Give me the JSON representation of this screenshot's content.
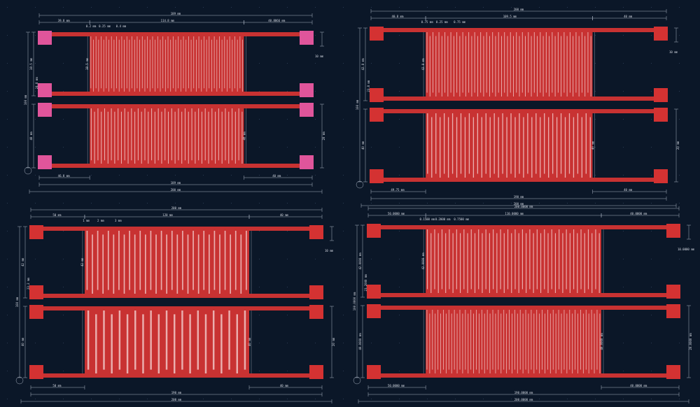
{
  "colors": {
    "background": "#0b1728",
    "copper": "#d93a3a",
    "copper_fill": "#c83232",
    "pad_magenta": "#e0559b",
    "pad_red": "#d43232",
    "dimension": "#aab3c2",
    "dim_text": "#d8dde6",
    "grid_dot": "#2a3a52"
  },
  "panels": [
    {
      "name": "top-left",
      "pad_style": "magenta",
      "fingers_top": 60,
      "fingers_bottom": 46,
      "labels": {
        "overall_w": "189 mm",
        "inner_w": "114.8 mm",
        "left_w": "39.8 mm",
        "right_w": "40.8866 mm",
        "left_bottom": "46.8 mm",
        "right_bottom": "40 mm",
        "bottom_total": "189 mm",
        "bottom_overall": "200 mm",
        "gap1": "0.2 mm",
        "gap2": "0.25 mm",
        "gap3": "0.4 mm",
        "height_a": "38.5 mm",
        "height_b": "24.8 mm",
        "height_c": "40 mm",
        "height_total": "100 mm",
        "side_a": "10 mm",
        "side_b": "20 mm"
      }
    },
    {
      "name": "top-right",
      "pad_style": "red",
      "fingers_top": 56,
      "fingers_bottom": 40,
      "labels": {
        "overall_w": "200 mm",
        "inner_w": "109.5 mm",
        "left_w": "40.8 mm",
        "right_w": "40 mm",
        "left_bottom": "49.75 mm",
        "right_bottom": "40 mm",
        "bottom_total": "190 mm",
        "bottom_overall": "200 mm",
        "gap1": "0.75 mm",
        "gap2": "0.25 mm",
        "gap3": "0.75 mm",
        "height_a": "42.8 mm",
        "height_b": "23.8 mm",
        "height_c": "40 mm",
        "height_total": "100 mm",
        "side_a": "10 mm",
        "side_b": "20 mm"
      }
    },
    {
      "name": "bottom-left",
      "pad_style": "red",
      "fingers_top": 31,
      "fingers_bottom": 21,
      "labels": {
        "overall_w": "200 mm",
        "inner_w": "120 mm",
        "left_w": "50 mm",
        "right_w": "40 mm",
        "left_bottom": "50 mm",
        "right_bottom": "40 mm",
        "bottom_total": "190 mm",
        "bottom_overall": "200 mm",
        "gap1": "1 mm",
        "gap2": "2 mm",
        "gap3": "3 mm",
        "height_a": "42 mm",
        "height_b": "23.2 mm",
        "height_c": "40 mm",
        "height_total": "100 mm",
        "side_a": "10 mm",
        "side_b": "20 mm"
      }
    },
    {
      "name": "bottom-right",
      "pad_style": "red",
      "fingers_top": 48,
      "fingers_bottom": 64,
      "labels": {
        "overall_w": "200.0000 mm",
        "inner_w": "110.0000 mm",
        "left_w": "50.0000 mm",
        "right_w": "40.0000 mm",
        "left_bottom": "50.0000 mm",
        "right_bottom": "40.0000 mm",
        "bottom_total": "190.0000 mm",
        "bottom_overall": "200.0000 mm",
        "gap1": "0.1500 mm",
        "gap2": "0.2000 mm",
        "gap3": "0.7500 mm",
        "height_a": "42.0000 mm",
        "height_b": "23.2000 mm",
        "height_c": "40.0000 mm",
        "height_total": "100.0000 mm",
        "side_a": "10.0000 mm",
        "side_b": "20.0000 mm"
      }
    }
  ]
}
